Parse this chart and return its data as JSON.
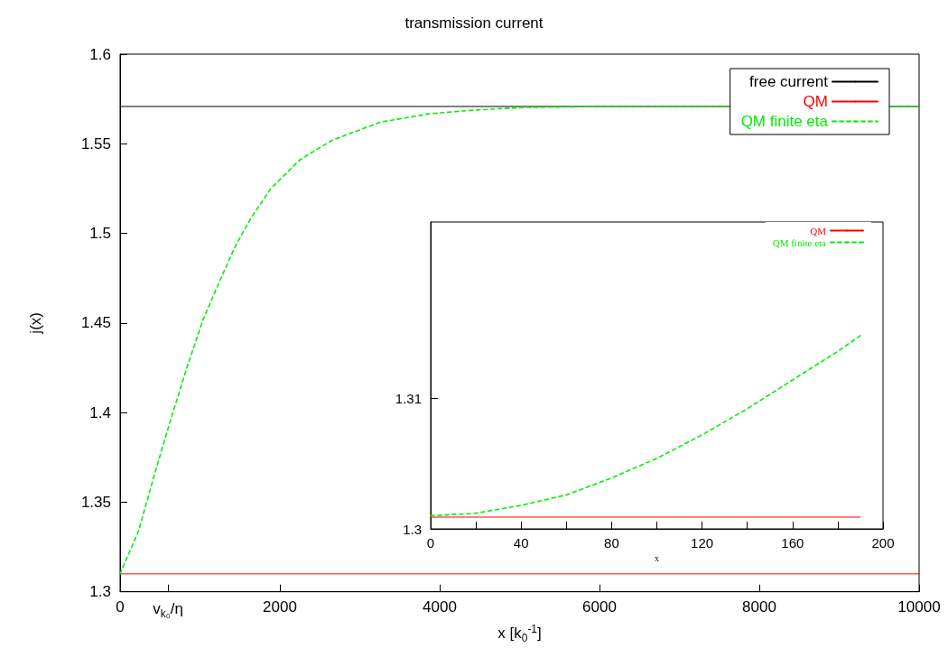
{
  "chart_data": [
    {
      "type": "line",
      "title": "transmission current",
      "xlabel": "x [k$_{0}$$^{-1}$]",
      "ylabel": "j(x)",
      "xlim": [
        0,
        10000
      ],
      "ylim": [
        1.3,
        1.6
      ],
      "xticks": [
        0,
        {
          "value": 600,
          "label": "v$_{k₀}$/η"
        },
        2000,
        4000,
        6000,
        8000,
        10000
      ],
      "yticks": [
        1.3,
        1.35,
        1.4,
        1.45,
        1.5,
        1.55,
        1.6
      ],
      "legend": "top right",
      "series": [
        {
          "name": "free current",
          "color": "#000000",
          "line_style": "solid",
          "x": [
            0,
            10000
          ],
          "values": [
            1.5708,
            1.5708
          ]
        },
        {
          "name": "QM",
          "color": "#ff0000",
          "line_style": "solid",
          "x": [
            0,
            10000
          ],
          "values": [
            1.31,
            1.31
          ]
        },
        {
          "name": "QM finite eta",
          "color": "#00ee00",
          "line_style": "dashed",
          "x": [
            0,
            232,
            434,
            633,
            836,
            1040,
            1243,
            1443,
            1645,
            1887,
            2249,
            2655,
            3254,
            3864,
            4373,
            5000,
            6000,
            10000
          ],
          "values": [
            1.31,
            1.334,
            1.366,
            1.396,
            1.425,
            1.452,
            1.473,
            1.493,
            1.509,
            1.525,
            1.541,
            1.552,
            1.562,
            1.5667,
            1.5686,
            1.5702,
            1.5708,
            1.5708
          ]
        }
      ]
    },
    {
      "type": "line",
      "xlabel": "x",
      "xlim": [
        0,
        200
      ],
      "ylim": [
        1.3,
        1.3235
      ],
      "xticks": [
        0,
        {
          "value": 20,
          "label": null
        },
        40,
        {
          "value": 60,
          "label": null
        },
        80,
        {
          "value": 100,
          "label": null
        },
        120,
        {
          "value": 140,
          "label": null
        },
        160,
        {
          "value": 180,
          "label": null
        },
        200
      ],
      "yticks": [
        1.3,
        1.31
      ],
      "legend": "top right",
      "series": [
        {
          "name": "QM",
          "color": "#ff0000",
          "line_style": "solid",
          "x": [
            0,
            190
          ],
          "values": [
            1.3009,
            1.3009
          ]
        },
        {
          "name": "QM finite eta",
          "color": "#00ee00",
          "line_style": "dashed",
          "x": [
            0,
            20,
            40,
            60,
            80,
            100,
            120,
            140,
            160,
            180,
            190
          ],
          "values": [
            1.301,
            1.3012,
            1.3018,
            1.3026,
            1.3039,
            1.3054,
            1.3072,
            1.3092,
            1.3114,
            1.3136,
            1.3148
          ]
        }
      ]
    }
  ]
}
